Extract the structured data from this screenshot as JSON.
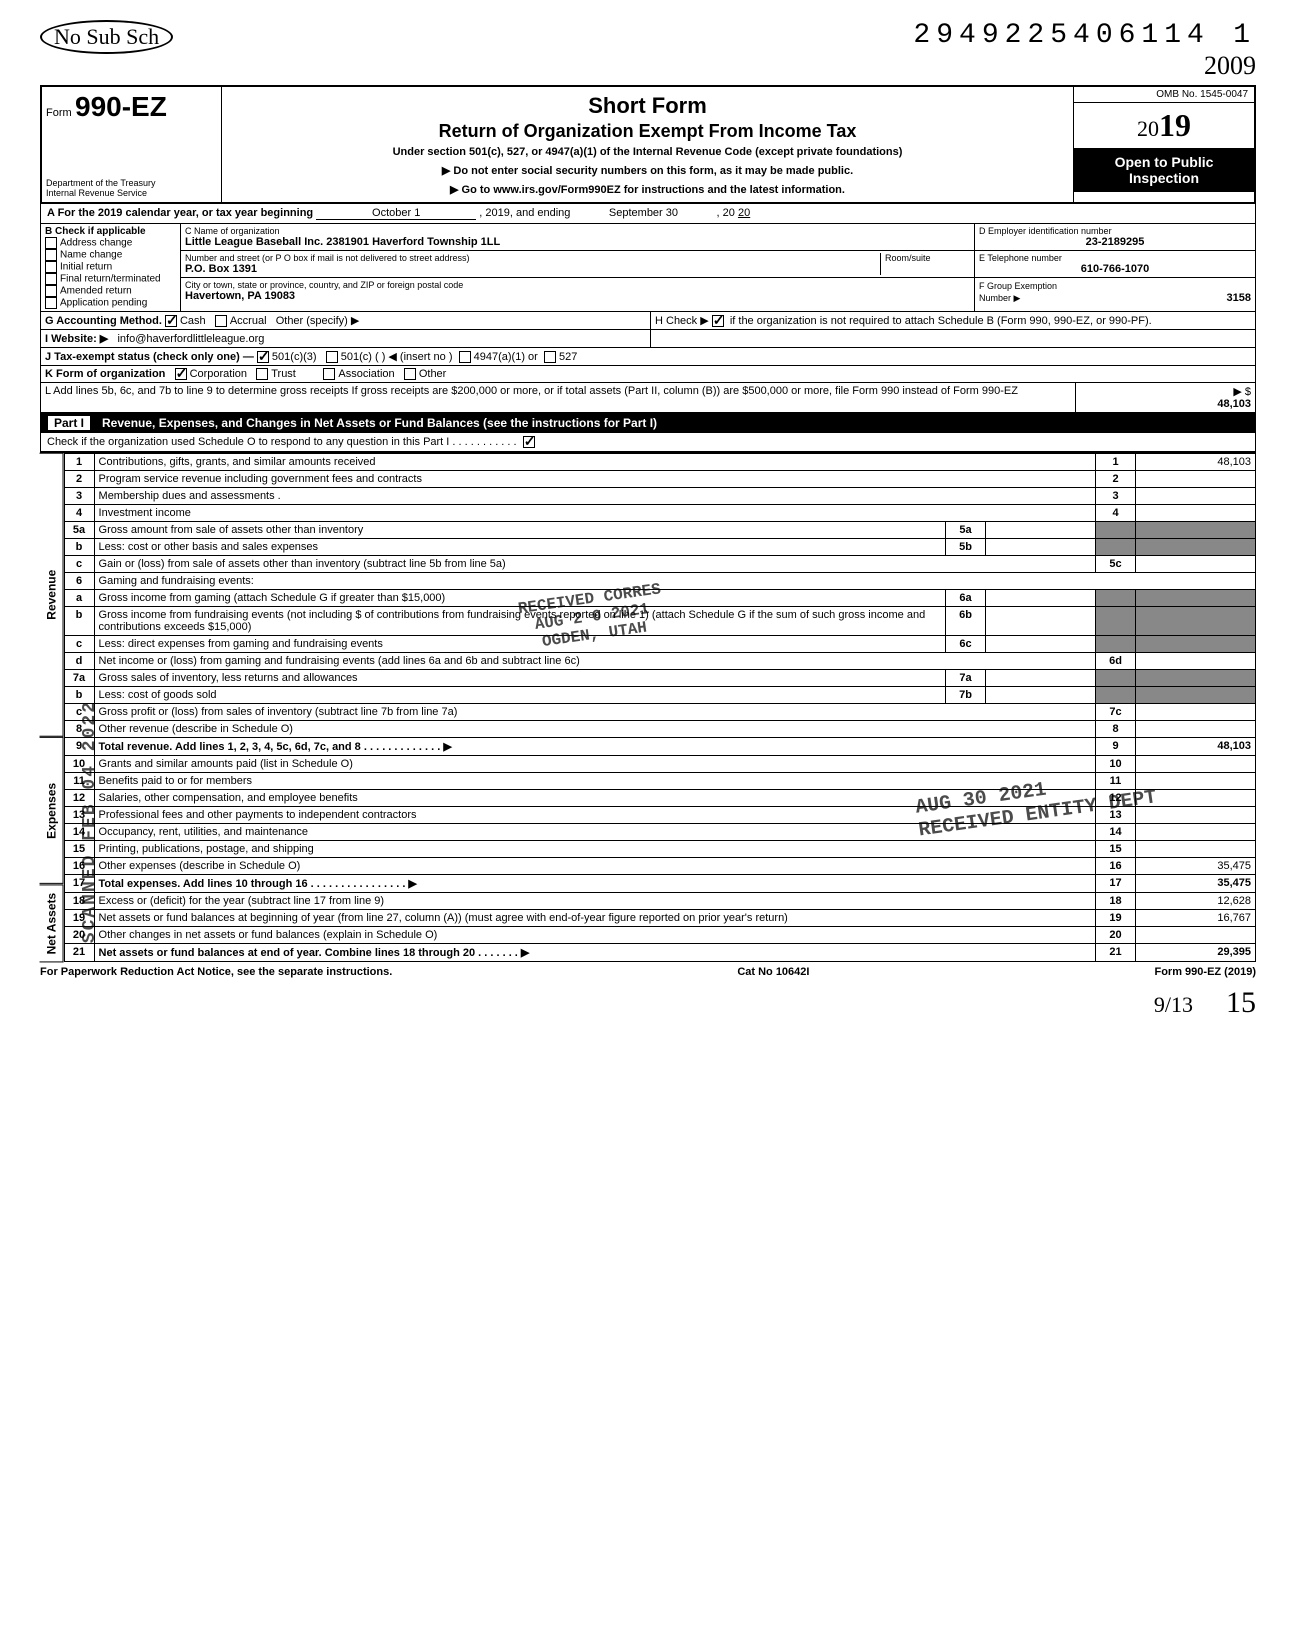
{
  "top": {
    "handwritten_note": "No Sub Sch",
    "tracking_number": "2949225406114",
    "page_num_top": "1",
    "hand_year": "2009"
  },
  "header": {
    "form_prefix": "Form",
    "form_number": "990-EZ",
    "dept": "Department of the Treasury",
    "irs": "Internal Revenue Service",
    "title1": "Short Form",
    "title2": "Return of Organization Exempt From Income Tax",
    "subtitle": "Under section 501(c), 527, or 4947(a)(1) of the Internal Revenue Code (except private foundations)",
    "arrow1": "▶ Do not enter social security numbers on this form, as it may be made public.",
    "arrow2": "▶ Go to www.irs.gov/Form990EZ for instructions and the latest information.",
    "omb": "OMB No. 1545-0047",
    "year": "2019",
    "open1": "Open to Public",
    "open2": "Inspection"
  },
  "sectionA": {
    "label": "A For the 2019 calendar year, or tax year beginning",
    "begin": "October 1",
    "mid": ", 2019, and ending",
    "end": "September 30",
    "end2": ", 20",
    "end_year": "20"
  },
  "colB": {
    "title": "B Check if applicable",
    "items": [
      "Address change",
      "Name change",
      "Initial return",
      "Final return/terminated",
      "Amended return",
      "Application pending"
    ]
  },
  "colC": {
    "label_name": "C Name of organization",
    "name": "Little League Baseball Inc. 2381901 Haverford Township 1LL",
    "label_addr": "Number and street (or P O box if mail is not delivered to street address)",
    "addr": "P.O. Box 1391",
    "room_label": "Room/suite",
    "label_city": "City or town, state or province, country, and ZIP or foreign postal code",
    "city": "Havertown, PA 19083"
  },
  "colD": {
    "label": "D Employer identification number",
    "ein": "23-2189295",
    "label_e": "E Telephone number",
    "phone": "610-766-1070",
    "label_f": "F Group Exemption",
    "label_f2": "Number ▶",
    "gen": "3158"
  },
  "rowG": {
    "label": "G Accounting Method.",
    "cash": "Cash",
    "accrual": "Accrual",
    "other": "Other (specify) ▶"
  },
  "rowH": {
    "label": "H Check ▶",
    "text": "if the organization is not required to attach Schedule B (Form 990, 990-EZ, or 990-PF)."
  },
  "rowI": {
    "label": "I  Website: ▶",
    "val": "info@haverfordlittleleague.org"
  },
  "rowJ": {
    "label": "J Tax-exempt status (check only one) —",
    "o1": "501(c)(3)",
    "o2": "501(c) (",
    "o2b": ") ◀ (insert no )",
    "o3": "4947(a)(1) or",
    "o4": "527"
  },
  "rowK": {
    "label": "K Form of organization",
    "o1": "Corporation",
    "o2": "Trust",
    "o3": "Association",
    "o4": "Other"
  },
  "rowL": {
    "text": "L Add lines 5b, 6c, and 7b to line 9 to determine gross receipts  If gross receipts are $200,000 or more, or if total assets (Part II, column (B)) are $500,000 or more, file Form 990 instead of Form 990-EZ",
    "arrow": "▶   $",
    "amt": "48,103"
  },
  "part1": {
    "label": "Part I",
    "title": "Revenue, Expenses, and Changes in Net Assets or Fund Balances (see the instructions for Part I)",
    "check_line": "Check if the organization used Schedule O to respond to any question in this Part I  .   .   .   .   .   .   .   .   .   .   .",
    "checked": true
  },
  "sections": {
    "revenue": "Revenue",
    "expenses": "Expenses",
    "netassets": "Net Assets"
  },
  "lines": [
    {
      "n": "1",
      "d": "Contributions, gifts, grants, and similar amounts received",
      "box": "1",
      "amt": "48,103"
    },
    {
      "n": "2",
      "d": "Program service revenue including government fees and contracts",
      "box": "2",
      "amt": ""
    },
    {
      "n": "3",
      "d": "Membership dues and assessments .",
      "box": "3",
      "amt": ""
    },
    {
      "n": "4",
      "d": "Investment income",
      "box": "4",
      "amt": ""
    },
    {
      "n": "5a",
      "d": "Gross amount from sale of assets other than inventory",
      "mid": "5a",
      "midamt": ""
    },
    {
      "n": "b",
      "d": "Less: cost or other basis and sales expenses",
      "mid": "5b",
      "midamt": ""
    },
    {
      "n": "c",
      "d": "Gain or (loss) from sale of assets other than inventory (subtract line 5b from line 5a)",
      "box": "5c",
      "amt": ""
    },
    {
      "n": "6",
      "d": "Gaming and fundraising events:"
    },
    {
      "n": "a",
      "d": "Gross income from gaming (attach Schedule G if greater than $15,000)",
      "mid": "6a",
      "midamt": ""
    },
    {
      "n": "b",
      "d": "Gross income from fundraising events (not including  $             of contributions from fundraising events reported on line 1) (attach Schedule G if the sum of such gross income and contributions exceeds $15,000)",
      "mid": "6b",
      "midamt": ""
    },
    {
      "n": "c",
      "d": "Less: direct expenses from gaming and fundraising events",
      "mid": "6c",
      "midamt": ""
    },
    {
      "n": "d",
      "d": "Net income or (loss) from gaming and fundraising events (add lines 6a and 6b and subtract line 6c)",
      "box": "6d",
      "amt": ""
    },
    {
      "n": "7a",
      "d": "Gross sales of inventory, less returns and allowances",
      "mid": "7a",
      "midamt": ""
    },
    {
      "n": "b",
      "d": "Less: cost of goods sold",
      "mid": "7b",
      "midamt": ""
    },
    {
      "n": "c",
      "d": "Gross profit or (loss) from sales of inventory (subtract line 7b from line 7a)",
      "box": "7c",
      "amt": ""
    },
    {
      "n": "8",
      "d": "Other revenue (describe in Schedule O)",
      "box": "8",
      "amt": ""
    },
    {
      "n": "9",
      "d": "Total revenue. Add lines 1, 2, 3, 4, 5c, 6d, 7c, and 8   .   .   .   .   .   .   .   .   .   .   .   .   .  ▶",
      "box": "9",
      "amt": "48,103",
      "bold": true
    },
    {
      "n": "10",
      "d": "Grants and similar amounts paid (list in Schedule O)",
      "box": "10",
      "amt": ""
    },
    {
      "n": "11",
      "d": "Benefits paid to or for members",
      "box": "11",
      "amt": ""
    },
    {
      "n": "12",
      "d": "Salaries, other compensation, and employee benefits",
      "box": "12",
      "amt": ""
    },
    {
      "n": "13",
      "d": "Professional fees and other payments to independent contractors",
      "box": "13",
      "amt": ""
    },
    {
      "n": "14",
      "d": "Occupancy, rent, utilities, and maintenance",
      "box": "14",
      "amt": ""
    },
    {
      "n": "15",
      "d": "Printing, publications, postage, and shipping",
      "box": "15",
      "amt": ""
    },
    {
      "n": "16",
      "d": "Other expenses (describe in Schedule O)",
      "box": "16",
      "amt": "35,475"
    },
    {
      "n": "17",
      "d": "Total expenses. Add lines 10 through 16   .   .   .   .   .   .   .   .   .   .   .   .   .   .   .   .  ▶",
      "box": "17",
      "amt": "35,475",
      "bold": true
    },
    {
      "n": "18",
      "d": "Excess or (deficit) for the year (subtract line 17 from line 9)",
      "box": "18",
      "amt": "12,628"
    },
    {
      "n": "19",
      "d": "Net assets or fund balances at beginning of year (from line 27, column (A)) (must agree with end-of-year figure reported on prior year's return)",
      "box": "19",
      "amt": "16,767"
    },
    {
      "n": "20",
      "d": "Other changes in net assets or fund balances (explain in Schedule O)",
      "box": "20",
      "amt": ""
    },
    {
      "n": "21",
      "d": "Net assets or fund balances at end of year. Combine lines 18 through 20   .   .   .   .   .   .   .  ▶",
      "box": "21",
      "amt": "29,395",
      "bold": true
    }
  ],
  "stamps": {
    "received": "RECEIVED CORRES\nAUG 2 0 2021\nOGDEN, UTAH",
    "received2": "AUG 30 2021\nRECEIVED ENTITY DEPT",
    "scanned": "SCANNED FEB 04 2022"
  },
  "footer": {
    "left": "For Paperwork Reduction Act Notice, see the separate instructions.",
    "mid": "Cat No 10642I",
    "right": "Form 990-EZ (2019)"
  },
  "hand_bottom": {
    "a": "9/13",
    "b": "15"
  },
  "colors": {
    "black": "#000000",
    "white": "#ffffff",
    "shade": "#808080"
  }
}
